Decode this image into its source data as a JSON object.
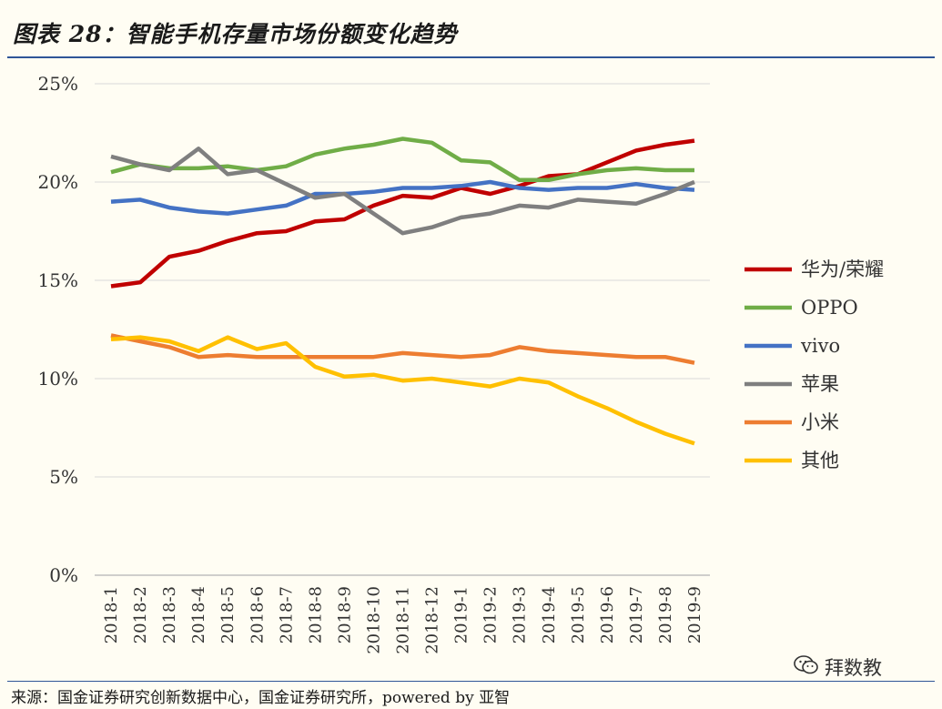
{
  "figure_title": "图表 28：智能手机存量市场份额变化趋势",
  "source_note": "来源：国金证券研究创新数据中心，国金证券研究所，powered by 亚智",
  "watermark_text": "拜数教",
  "watermark_icon": "wechat-icon",
  "chart_data": {
    "type": "line",
    "title": "",
    "xlabel": "",
    "ylabel": "",
    "ylim": [
      0,
      25
    ],
    "yticks": [
      "0%",
      "5%",
      "10%",
      "15%",
      "20%",
      "25%"
    ],
    "grid": "horizontal",
    "legend_position": "right",
    "categories": [
      "2018-1",
      "2018-2",
      "2018-3",
      "2018-4",
      "2018-5",
      "2018-6",
      "2018-7",
      "2018-8",
      "2018-9",
      "2018-10",
      "2018-11",
      "2018-12",
      "2019-1",
      "2019-2",
      "2019-3",
      "2019-4",
      "2019-5",
      "2019-6",
      "2019-7",
      "2019-8",
      "2019-9"
    ],
    "series": [
      {
        "name": "华为/荣耀",
        "color": "#c00000",
        "values": [
          14.7,
          14.9,
          16.2,
          16.5,
          17.0,
          17.4,
          17.5,
          18.0,
          18.1,
          18.8,
          19.3,
          19.2,
          19.7,
          19.4,
          19.8,
          20.3,
          20.4,
          21.0,
          21.6,
          21.9,
          22.1
        ]
      },
      {
        "name": "OPPO",
        "color": "#70ad47",
        "values": [
          20.5,
          20.9,
          20.7,
          20.7,
          20.8,
          20.6,
          20.8,
          21.4,
          21.7,
          21.9,
          22.2,
          22.0,
          21.1,
          21.0,
          20.1,
          20.1,
          20.4,
          20.6,
          20.7,
          20.6,
          20.6
        ]
      },
      {
        "name": "vivo",
        "color": "#4472c4",
        "values": [
          19.0,
          19.1,
          18.7,
          18.5,
          18.4,
          18.6,
          18.8,
          19.4,
          19.4,
          19.5,
          19.7,
          19.7,
          19.8,
          20.0,
          19.7,
          19.6,
          19.7,
          19.7,
          19.9,
          19.7,
          19.6
        ]
      },
      {
        "name": "苹果",
        "color": "#7f7f7f",
        "values": [
          21.3,
          20.9,
          20.6,
          21.7,
          20.4,
          20.6,
          19.9,
          19.2,
          19.4,
          18.4,
          17.4,
          17.7,
          18.2,
          18.4,
          18.8,
          18.7,
          19.1,
          19.0,
          18.9,
          19.4,
          20.0
        ]
      },
      {
        "name": "小米",
        "color": "#ed7d31",
        "values": [
          12.2,
          11.9,
          11.6,
          11.1,
          11.2,
          11.1,
          11.1,
          11.1,
          11.1,
          11.1,
          11.3,
          11.2,
          11.1,
          11.2,
          11.6,
          11.4,
          11.3,
          11.2,
          11.1,
          11.1,
          10.8
        ]
      },
      {
        "name": "其他",
        "color": "#ffc000",
        "values": [
          12.0,
          12.1,
          11.9,
          11.4,
          12.1,
          11.5,
          11.8,
          10.6,
          10.1,
          10.2,
          9.9,
          10.0,
          9.8,
          9.6,
          10.0,
          9.8,
          9.1,
          8.5,
          7.8,
          7.2,
          6.7
        ]
      }
    ]
  }
}
